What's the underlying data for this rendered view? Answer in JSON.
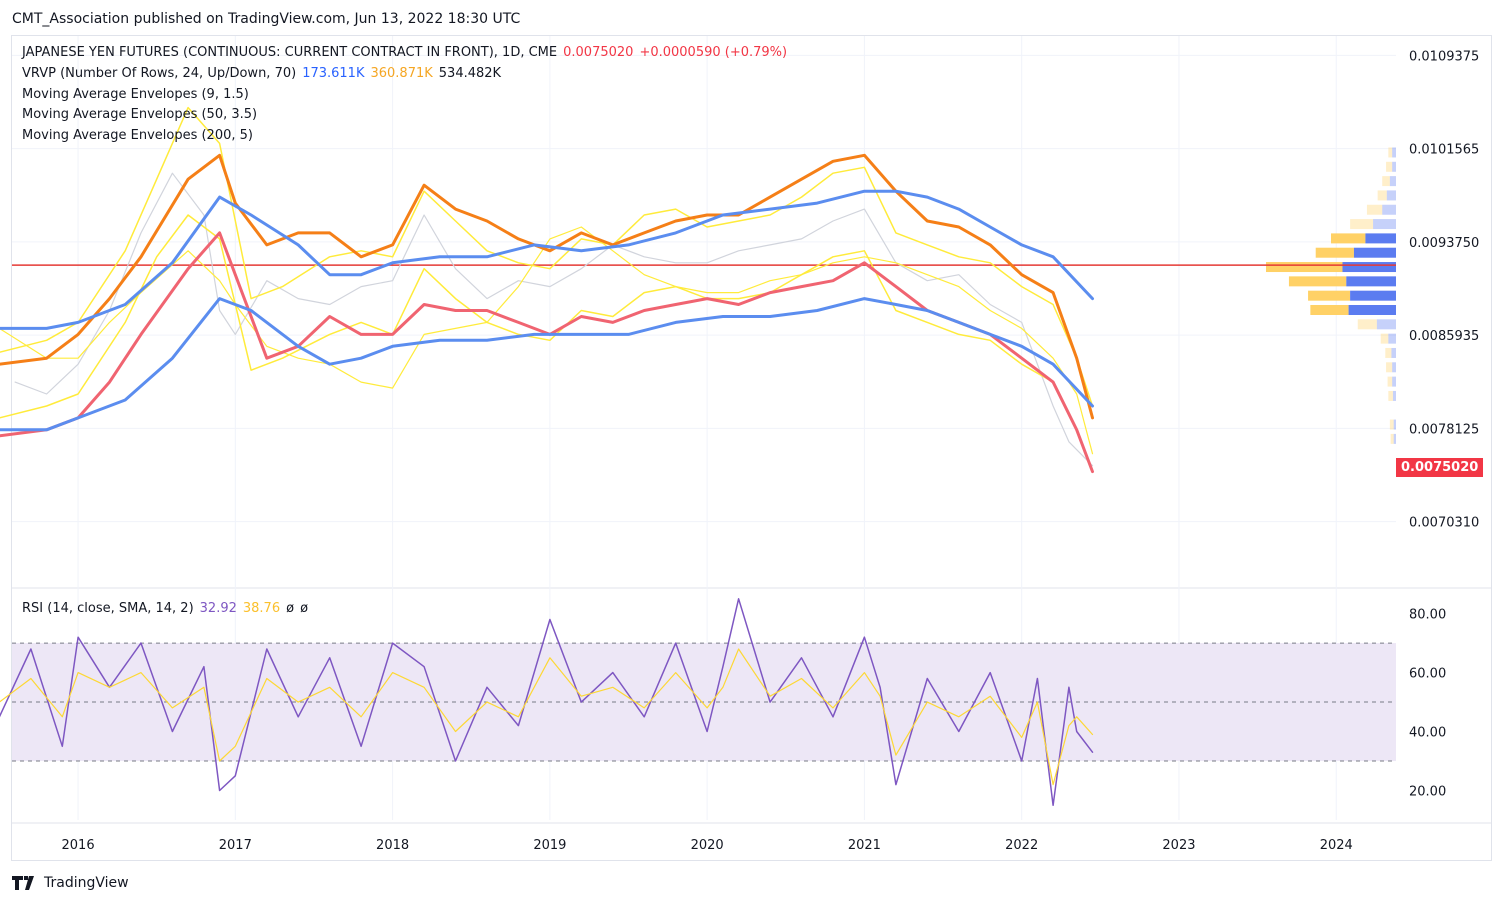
{
  "header": {
    "published": "CMT_Association published on TradingView.com, Jun 13, 2022 18:30 UTC"
  },
  "footer": {
    "brand": "TradingView"
  },
  "legend": {
    "main_title": "JAPANESE YEN FUTURES (CONTINUOUS: CURRENT CONTRACT IN FRONT), 1D, CME",
    "main_price": "0.0075020",
    "main_change": "+0.0000590 (+0.79%)",
    "vrvp_label": "VRVP (Number Of Rows, 24, Up/Down, 70)",
    "vrvp_up": "173.611K",
    "vrvp_down": "360.871K",
    "vrvp_total": "534.482K",
    "mae1": "Moving Average Envelopes (9, 1.5)",
    "mae2": "Moving Average Envelopes (50, 3.5)",
    "mae3": "Moving Average Envelopes (200, 5)",
    "rsi_label": "RSI (14, close, SMA, 14, 2)",
    "rsi_value": "32.92",
    "rsi_ma": "38.76",
    "rsi_null1": "ø",
    "rsi_null2": "ø"
  },
  "colors": {
    "price": "#d1d4dc",
    "mae9": "#ffeb3b",
    "mae50_upper": "#f57f17",
    "mae50_lower": "#f06471",
    "mae200": "#5b8def",
    "hline": "#e53935",
    "rsi": "#7e57c2",
    "rsi_ma": "#fdd835",
    "rsi_band": "#ede7f6",
    "vp_up": "#5b7cf0",
    "vp_down": "#ffd166",
    "price_tag": "#f23645"
  },
  "chart_data": {
    "type": "line",
    "price_pane": {
      "y_ticks": [
        "0.0109375",
        "0.0101565",
        "0.0093750",
        "0.0085935",
        "0.0078125",
        "0.0070310"
      ],
      "ylim": [
        0.0065,
        0.0111
      ],
      "last_price": 0.007502,
      "last_price_label": "0.0075020",
      "horizontal_line": 0.00918,
      "series": [
        {
          "x": [
            2015.6,
            2015.8,
            2016.0,
            2016.2,
            2016.4,
            2016.6,
            2016.8,
            2016.9,
            2017.0,
            2017.2,
            2017.4,
            2017.6,
            2017.8,
            2018.0,
            2018.2,
            2018.4,
            2018.6,
            2018.8,
            2019.0,
            2019.2,
            2019.4,
            2019.6,
            2019.8,
            2020.0,
            2020.2,
            2020.4,
            2020.6,
            2020.8,
            2021.0,
            2021.2,
            2021.4,
            2021.6,
            2021.8,
            2022.0,
            2022.2,
            2022.3,
            2022.45
          ],
          "values": [
            0.0082,
            0.0081,
            0.00835,
            0.0088,
            0.00945,
            0.00995,
            0.0096,
            0.0088,
            0.0086,
            0.00905,
            0.0089,
            0.00885,
            0.009,
            0.00905,
            0.0096,
            0.00915,
            0.0089,
            0.00905,
            0.009,
            0.00915,
            0.00935,
            0.00925,
            0.0092,
            0.0092,
            0.0093,
            0.00935,
            0.0094,
            0.00955,
            0.00965,
            0.0092,
            0.00905,
            0.0091,
            0.00885,
            0.0087,
            0.008,
            0.0077,
            0.0075
          ]
        },
        {
          "x": [
            2015.5,
            2015.8,
            2016.0,
            2016.3,
            2016.5,
            2016.7,
            2016.9,
            2017.1,
            2017.3,
            2017.6,
            2017.8,
            2018.0,
            2018.2,
            2018.4,
            2018.6,
            2018.8,
            2019.0,
            2019.2,
            2019.4,
            2019.6,
            2019.8,
            2020.0,
            2020.2,
            2020.4,
            2020.6,
            2020.8,
            2021.0,
            2021.2,
            2021.4,
            2021.6,
            2021.8,
            2022.0,
            2022.2,
            2022.35,
            2022.45
          ],
          "values": [
            0.00845,
            0.00855,
            0.0087,
            0.0093,
            0.0099,
            0.0105,
            0.0102,
            0.0089,
            0.009,
            0.00925,
            0.0093,
            0.00925,
            0.0098,
            0.00955,
            0.0093,
            0.0092,
            0.00915,
            0.0094,
            0.00935,
            0.0096,
            0.00965,
            0.0095,
            0.00955,
            0.0096,
            0.00975,
            0.00995,
            0.01,
            0.00945,
            0.00935,
            0.00925,
            0.0092,
            0.009,
            0.00885,
            0.0084,
            0.008
          ]
        },
        {
          "x": [
            2015.5,
            2015.8,
            2016.0,
            2016.3,
            2016.5,
            2016.7,
            2016.9,
            2017.1,
            2017.3,
            2017.6,
            2017.8,
            2018.0,
            2018.2,
            2018.4,
            2018.6,
            2018.8,
            2019.0,
            2019.2,
            2019.4,
            2019.6,
            2019.8,
            2020.0,
            2020.2,
            2020.4,
            2020.6,
            2020.8,
            2021.0,
            2021.2,
            2021.4,
            2021.6,
            2021.8,
            2022.0,
            2022.2,
            2022.35,
            2022.45
          ],
          "values": [
            0.0079,
            0.008,
            0.0081,
            0.0087,
            0.00925,
            0.0096,
            0.0094,
            0.0083,
            0.0084,
            0.0086,
            0.0087,
            0.0086,
            0.00915,
            0.0089,
            0.0087,
            0.0086,
            0.00855,
            0.0088,
            0.00875,
            0.00895,
            0.009,
            0.0089,
            0.0089,
            0.00895,
            0.0091,
            0.00925,
            0.0093,
            0.0088,
            0.0087,
            0.0086,
            0.00855,
            0.00835,
            0.0082,
            0.0078,
            0.00745
          ]
        },
        {
          "x": [
            2015.5,
            2015.8,
            2016.0,
            2016.2,
            2016.4,
            2016.7,
            2016.9,
            2017.0,
            2017.2,
            2017.4,
            2017.6,
            2017.8,
            2018.0,
            2018.2,
            2018.4,
            2018.6,
            2018.8,
            2019.0,
            2019.2,
            2019.4,
            2019.6,
            2019.8,
            2020.0,
            2020.2,
            2020.4,
            2020.6,
            2020.8,
            2021.0,
            2021.2,
            2021.4,
            2021.6,
            2021.8,
            2022.0,
            2022.2,
            2022.35,
            2022.45
          ],
          "values": [
            0.00865,
            0.0084,
            0.0084,
            0.0087,
            0.00895,
            0.0093,
            0.00905,
            0.00885,
            0.0085,
            0.0084,
            0.00835,
            0.0082,
            0.00815,
            0.0086,
            0.00865,
            0.0087,
            0.009,
            0.0094,
            0.0095,
            0.0093,
            0.0091,
            0.009,
            0.00895,
            0.00895,
            0.00905,
            0.0091,
            0.0092,
            0.00925,
            0.0092,
            0.0091,
            0.009,
            0.0088,
            0.00865,
            0.0084,
            0.0081,
            0.0076
          ]
        },
        {
          "x": [
            2015.5,
            2015.8,
            2016.0,
            2016.2,
            2016.4,
            2016.7,
            2016.9,
            2017.0,
            2017.2,
            2017.4,
            2017.6,
            2017.8,
            2018.0,
            2018.2,
            2018.4,
            2018.6,
            2018.8,
            2019.0,
            2019.2,
            2019.4,
            2019.6,
            2019.8,
            2020.0,
            2020.2,
            2020.4,
            2020.6,
            2020.8,
            2021.0,
            2021.2,
            2021.4,
            2021.6,
            2021.8,
            2022.0,
            2022.2,
            2022.35,
            2022.45
          ],
          "values": [
            0.00835,
            0.0084,
            0.0086,
            0.0089,
            0.00925,
            0.0099,
            0.0101,
            0.0097,
            0.00935,
            0.00945,
            0.00945,
            0.00925,
            0.00935,
            0.00985,
            0.00965,
            0.00955,
            0.0094,
            0.0093,
            0.00945,
            0.00935,
            0.00945,
            0.00955,
            0.0096,
            0.0096,
            0.00975,
            0.0099,
            0.01005,
            0.0101,
            0.0098,
            0.00955,
            0.0095,
            0.00935,
            0.0091,
            0.00895,
            0.0084,
            0.0079
          ]
        },
        {
          "x": [
            2015.5,
            2015.8,
            2016.0,
            2016.2,
            2016.4,
            2016.7,
            2016.9,
            2017.0,
            2017.2,
            2017.4,
            2017.6,
            2017.8,
            2018.0,
            2018.2,
            2018.4,
            2018.6,
            2018.8,
            2019.0,
            2019.2,
            2019.4,
            2019.6,
            2019.8,
            2020.0,
            2020.2,
            2020.4,
            2020.6,
            2020.8,
            2021.0,
            2021.2,
            2021.4,
            2021.6,
            2021.8,
            2022.0,
            2022.2,
            2022.35,
            2022.45
          ],
          "values": [
            0.00775,
            0.0078,
            0.0079,
            0.0082,
            0.0086,
            0.00915,
            0.00945,
            0.0091,
            0.0084,
            0.0085,
            0.00875,
            0.0086,
            0.0086,
            0.00885,
            0.0088,
            0.0088,
            0.0087,
            0.0086,
            0.00875,
            0.0087,
            0.0088,
            0.00885,
            0.0089,
            0.00885,
            0.00895,
            0.009,
            0.00905,
            0.0092,
            0.009,
            0.0088,
            0.0087,
            0.0086,
            0.0084,
            0.0082,
            0.0078,
            0.00745
          ]
        },
        {
          "x": [
            2015.5,
            2015.8,
            2016.0,
            2016.3,
            2016.6,
            2016.9,
            2017.1,
            2017.4,
            2017.6,
            2017.8,
            2018.0,
            2018.3,
            2018.6,
            2018.9,
            2019.2,
            2019.5,
            2019.8,
            2020.1,
            2020.4,
            2020.7,
            2021.0,
            2021.2,
            2021.4,
            2021.6,
            2021.8,
            2022.0,
            2022.2,
            2022.45
          ],
          "values": [
            0.00865,
            0.00865,
            0.0087,
            0.00885,
            0.0092,
            0.00975,
            0.0096,
            0.00935,
            0.0091,
            0.0091,
            0.0092,
            0.00925,
            0.00925,
            0.00935,
            0.0093,
            0.00935,
            0.00945,
            0.0096,
            0.00965,
            0.0097,
            0.0098,
            0.0098,
            0.00975,
            0.00965,
            0.0095,
            0.00935,
            0.00925,
            0.0089
          ]
        },
        {
          "x": [
            2015.5,
            2015.8,
            2016.0,
            2016.3,
            2016.6,
            2016.9,
            2017.1,
            2017.4,
            2017.6,
            2017.8,
            2018.0,
            2018.3,
            2018.6,
            2018.9,
            2019.2,
            2019.5,
            2019.8,
            2020.1,
            2020.4,
            2020.7,
            2021.0,
            2021.2,
            2021.4,
            2021.6,
            2021.8,
            2022.0,
            2022.2,
            2022.45
          ],
          "values": [
            0.0078,
            0.0078,
            0.0079,
            0.00805,
            0.0084,
            0.0089,
            0.0088,
            0.0085,
            0.00835,
            0.0084,
            0.0085,
            0.00855,
            0.00855,
            0.0086,
            0.0086,
            0.0086,
            0.0087,
            0.00875,
            0.00875,
            0.0088,
            0.0089,
            0.00885,
            0.0088,
            0.0087,
            0.0086,
            0.0085,
            0.00835,
            0.008
          ]
        }
      ]
    },
    "rsi_pane": {
      "y_ticks": [
        "80.00",
        "60.00",
        "40.00",
        "20.00"
      ],
      "ylim": [
        10,
        88
      ],
      "bands": [
        30,
        50,
        70
      ],
      "x": [
        2015.5,
        2015.7,
        2015.9,
        2016.0,
        2016.2,
        2016.4,
        2016.6,
        2016.8,
        2016.9,
        2017.0,
        2017.2,
        2017.4,
        2017.6,
        2017.8,
        2018.0,
        2018.2,
        2018.4,
        2018.6,
        2018.8,
        2019.0,
        2019.2,
        2019.4,
        2019.6,
        2019.8,
        2020.0,
        2020.1,
        2020.2,
        2020.4,
        2020.6,
        2020.8,
        2021.0,
        2021.1,
        2021.2,
        2021.4,
        2021.6,
        2021.8,
        2022.0,
        2022.1,
        2022.2,
        2022.3,
        2022.35,
        2022.45
      ],
      "rsi": [
        45,
        68,
        35,
        72,
        55,
        70,
        40,
        62,
        20,
        25,
        68,
        45,
        65,
        35,
        70,
        62,
        30,
        55,
        42,
        78,
        50,
        60,
        45,
        70,
        40,
        62,
        85,
        50,
        65,
        45,
        72,
        55,
        22,
        58,
        40,
        60,
        30,
        58,
        15,
        55,
        40,
        33
      ],
      "rsi_ma": [
        50,
        58,
        45,
        60,
        55,
        60,
        48,
        55,
        30,
        35,
        58,
        50,
        55,
        45,
        60,
        55,
        40,
        50,
        45,
        65,
        52,
        55,
        48,
        60,
        48,
        55,
        68,
        52,
        58,
        48,
        60,
        52,
        32,
        50,
        45,
        52,
        38,
        50,
        22,
        42,
        45,
        39
      ]
    },
    "volume_profile": {
      "rows": [
        {
          "price": 0.01012,
          "up": 0.05,
          "down": 0.05
        },
        {
          "price": 0.01,
          "up": 0.05,
          "down": 0.08
        },
        {
          "price": 0.00988,
          "up": 0.08,
          "down": 0.1
        },
        {
          "price": 0.00976,
          "up": 0.12,
          "down": 0.12
        },
        {
          "price": 0.00964,
          "up": 0.18,
          "down": 0.2
        },
        {
          "price": 0.00952,
          "up": 0.3,
          "down": 0.3
        },
        {
          "price": 0.0094,
          "up": 0.4,
          "down": 0.45
        },
        {
          "price": 0.00928,
          "up": 0.55,
          "down": 0.5
        },
        {
          "price": 0.00916,
          "up": 0.7,
          "down": 1.0
        },
        {
          "price": 0.00904,
          "up": 0.65,
          "down": 0.75
        },
        {
          "price": 0.00892,
          "up": 0.6,
          "down": 0.55
        },
        {
          "price": 0.0088,
          "up": 0.62,
          "down": 0.5
        },
        {
          "price": 0.00868,
          "up": 0.25,
          "down": 0.25
        },
        {
          "price": 0.00856,
          "up": 0.1,
          "down": 0.1
        },
        {
          "price": 0.00844,
          "up": 0.06,
          "down": 0.08
        },
        {
          "price": 0.00832,
          "up": 0.05,
          "down": 0.08
        },
        {
          "price": 0.0082,
          "up": 0.05,
          "down": 0.06
        },
        {
          "price": 0.00808,
          "up": 0.04,
          "down": 0.06
        },
        {
          "price": 0.00784,
          "up": 0.03,
          "down": 0.05
        },
        {
          "price": 0.00772,
          "up": 0.03,
          "down": 0.04
        }
      ]
    },
    "x_ticks": [
      "2016",
      "2017",
      "2018",
      "2019",
      "2020",
      "2021",
      "2022",
      "2023",
      "2024"
    ],
    "xlim": [
      2015.58,
      2024.38
    ]
  }
}
